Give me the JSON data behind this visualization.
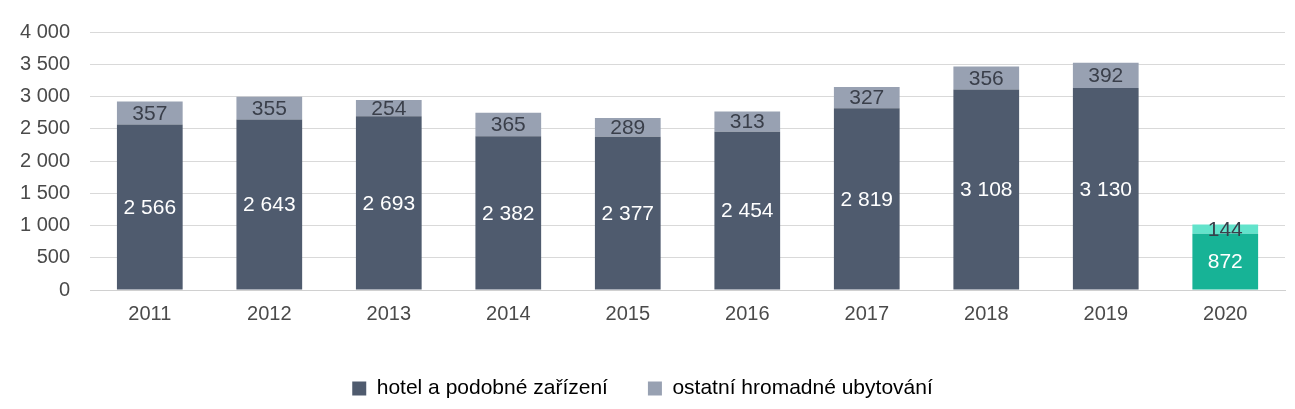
{
  "chart_data": {
    "type": "bar",
    "stacked": true,
    "categories": [
      "2011",
      "2012",
      "2013",
      "2014",
      "2015",
      "2016",
      "2017",
      "2018",
      "2019",
      "2020"
    ],
    "series": [
      {
        "name": "hotel a podobné zařízení",
        "color": "#4f5b6e",
        "colors": [
          "#4f5b6e",
          "#4f5b6e",
          "#4f5b6e",
          "#4f5b6e",
          "#4f5b6e",
          "#4f5b6e",
          "#4f5b6e",
          "#4f5b6e",
          "#4f5b6e",
          "#17b396"
        ],
        "values": [
          2566,
          2643,
          2693,
          2382,
          2377,
          2454,
          2819,
          3108,
          3130,
          872
        ]
      },
      {
        "name": "ostatní hromadné ubytování",
        "color": "#98a1b2",
        "colors": [
          "#98a1b2",
          "#98a1b2",
          "#98a1b2",
          "#98a1b2",
          "#98a1b2",
          "#98a1b2",
          "#98a1b2",
          "#98a1b2",
          "#98a1b2",
          "#62e3cb"
        ],
        "values": [
          357,
          355,
          254,
          365,
          289,
          313,
          327,
          356,
          392,
          144
        ]
      }
    ],
    "ylim": [
      0,
      4000
    ],
    "yticks": [
      {
        "value": 0,
        "label": "0"
      },
      {
        "value": 500,
        "label": "500"
      },
      {
        "value": 1000,
        "label": "1 000"
      },
      {
        "value": 1500,
        "label": "1 500"
      },
      {
        "value": 2000,
        "label": "2 000"
      },
      {
        "value": 2500,
        "label": "2 500"
      },
      {
        "value": 3000,
        "label": "3 000"
      },
      {
        "value": 3500,
        "label": "3 500"
      },
      {
        "value": 4000,
        "label": "4 000"
      }
    ],
    "grid": "y",
    "legend": "bottom",
    "data_labels": true
  }
}
